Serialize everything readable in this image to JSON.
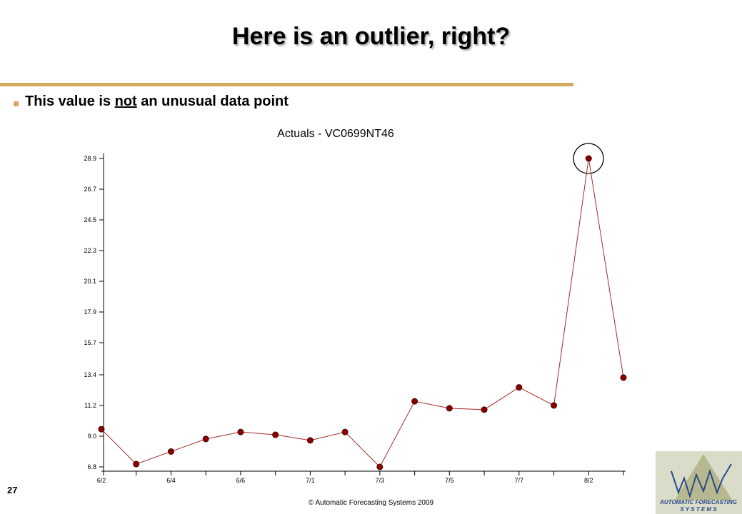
{
  "slide": {
    "title": "Here is an outlier, right?",
    "bullet": [
      "This value is ",
      "not",
      " an unusual data point"
    ],
    "page_number": "27",
    "footer": "© Automatic Forecasting Systems 2009",
    "logo": [
      "AUTOMATIC FORECASTING",
      "S Y S T E M S"
    ]
  },
  "chart_data": {
    "type": "line",
    "title": "Actuals - VC0699NT46",
    "categories": [
      "6/2",
      null,
      "6/4",
      null,
      "6/6",
      null,
      "7/1",
      null,
      "7/3",
      null,
      "7/5",
      null,
      "7/7",
      null,
      "8/2",
      null
    ],
    "values": [
      9.5,
      7.0,
      7.9,
      8.8,
      9.3,
      9.1,
      8.7,
      9.3,
      6.8,
      11.5,
      11.0,
      10.9,
      12.5,
      11.2,
      28.9,
      13.2
    ],
    "color": "#a52a2a",
    "marker_color": "#8b0000",
    "ylim": [
      6.8,
      28.9
    ],
    "yticks": [
      6.8,
      {
        "value": 9,
        "label": "9.0"
      },
      11.2,
      13.4,
      15.7,
      17.9,
      20.1,
      22.3,
      24.5,
      26.7,
      28.9
    ]
  }
}
